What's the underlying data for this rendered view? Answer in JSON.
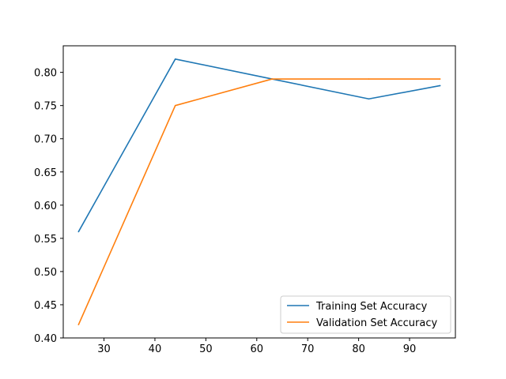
{
  "chart_data": {
    "type": "line",
    "title": "",
    "xlabel": "",
    "ylabel": "",
    "xlim": [
      22,
      99
    ],
    "ylim": [
      0.4,
      0.84
    ],
    "x_ticks": [
      30,
      40,
      50,
      60,
      70,
      80,
      90
    ],
    "y_ticks": [
      0.4,
      0.45,
      0.5,
      0.55,
      0.6,
      0.65,
      0.7,
      0.75,
      0.8
    ],
    "x_tick_labels": [
      "30",
      "40",
      "50",
      "60",
      "70",
      "80",
      "90"
    ],
    "y_tick_labels": [
      "0.40",
      "0.45",
      "0.50",
      "0.55",
      "0.60",
      "0.65",
      "0.70",
      "0.75",
      "0.80"
    ],
    "grid": false,
    "legend_position": "bottom-right",
    "series": [
      {
        "name": "Training Set Accuracy",
        "color": "#1f77b4",
        "x": [
          25,
          44,
          63,
          82,
          96
        ],
        "y": [
          0.56,
          0.82,
          0.79,
          0.76,
          0.78
        ]
      },
      {
        "name": "Validation Set Accuracy",
        "color": "#ff7f0e",
        "x": [
          25,
          44,
          63,
          82,
          96
        ],
        "y": [
          0.42,
          0.75,
          0.79,
          0.79,
          0.79
        ]
      }
    ]
  }
}
